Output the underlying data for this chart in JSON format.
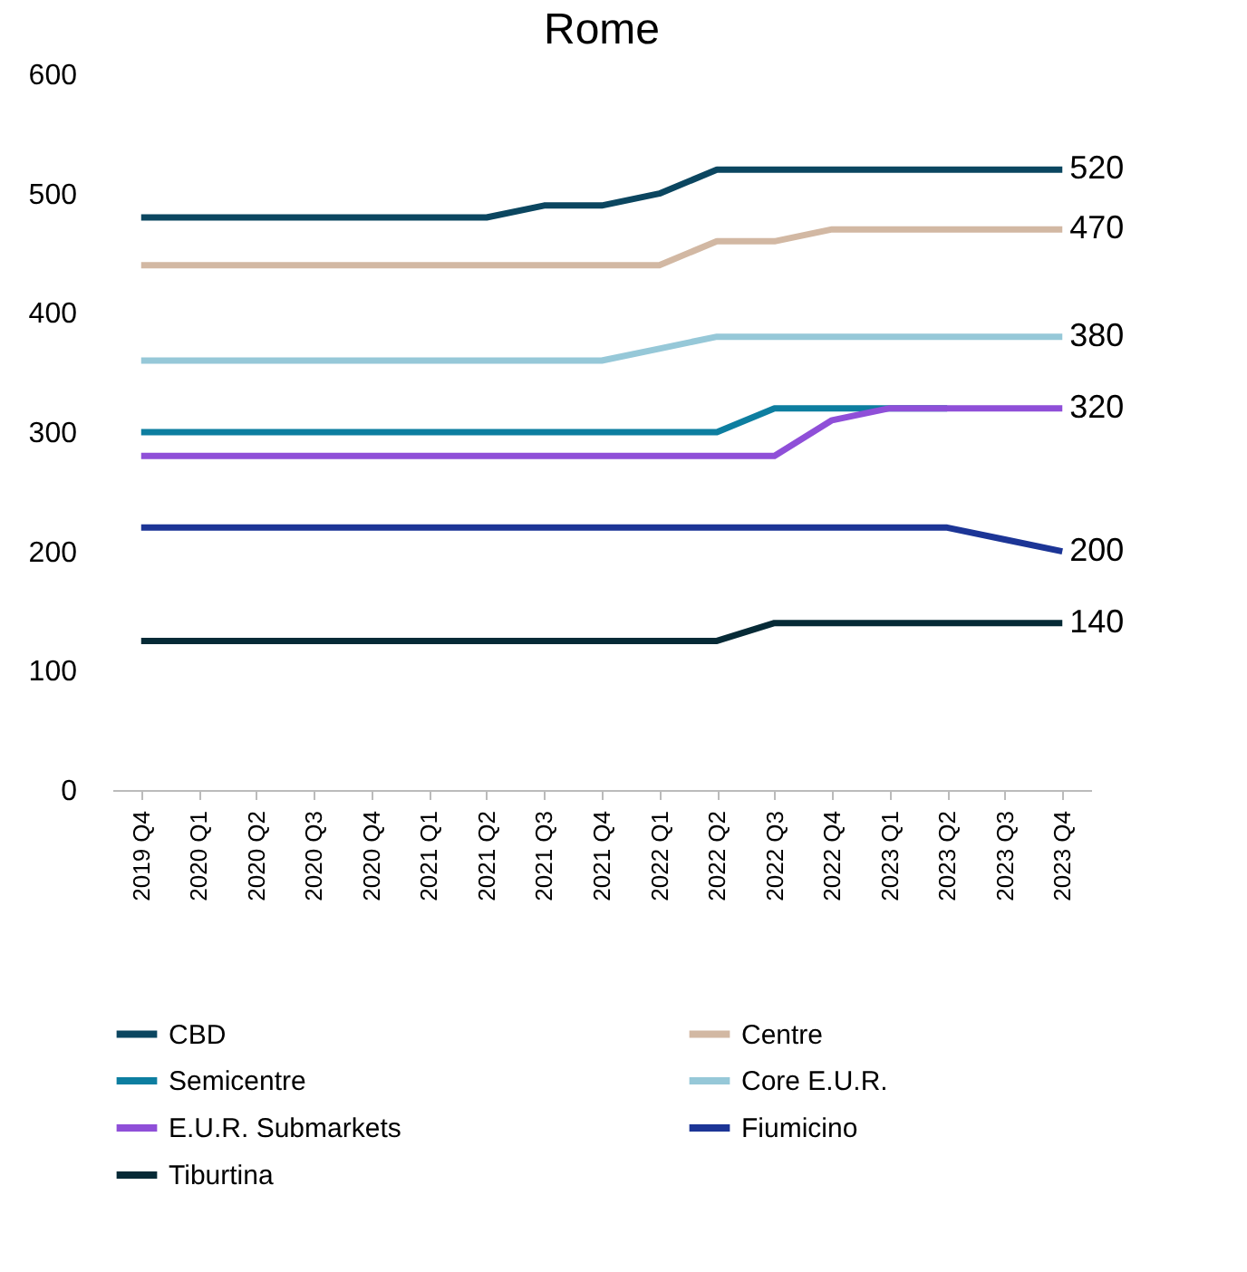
{
  "chart_data": {
    "type": "line",
    "title": "Rome",
    "categories": [
      "2019 Q4",
      "2020 Q1",
      "2020 Q2",
      "2020 Q3",
      "2020 Q4",
      "2021 Q1",
      "2021 Q2",
      "2021 Q3",
      "2021 Q4",
      "2022 Q1",
      "2022 Q2",
      "2022 Q3",
      "2022 Q4",
      "2023 Q1",
      "2023 Q2",
      "2023 Q3",
      "2023 Q4"
    ],
    "ylim": [
      0,
      600
    ],
    "yticks": [
      0,
      100,
      200,
      300,
      400,
      500,
      600
    ],
    "grid": false,
    "legend": "bottom",
    "marker": "none",
    "line_style": "solid",
    "series": [
      {
        "name": "CBD",
        "color": "#0b4660",
        "values": [
          480,
          480,
          480,
          480,
          480,
          480,
          480,
          490,
          490,
          500,
          520,
          520,
          520,
          520,
          520,
          520,
          520
        ],
        "value_labels": [
          null,
          null,
          null,
          null,
          null,
          null,
          null,
          null,
          null,
          null,
          null,
          null,
          null,
          null,
          null,
          null,
          "520"
        ]
      },
      {
        "name": "Centre",
        "color": "#d2b8a3",
        "values": [
          440,
          440,
          440,
          440,
          440,
          440,
          440,
          440,
          440,
          440,
          460,
          460,
          470,
          470,
          470,
          470,
          470
        ],
        "value_labels": [
          null,
          null,
          null,
          null,
          null,
          null,
          null,
          null,
          null,
          null,
          null,
          null,
          null,
          null,
          null,
          null,
          "470"
        ]
      },
      {
        "name": "Semicentre",
        "color": "#0d7ea0",
        "values": [
          300,
          300,
          300,
          300,
          300,
          300,
          300,
          300,
          300,
          300,
          300,
          320,
          320,
          320,
          320,
          null,
          null
        ]
      },
      {
        "name": "Core E.U.R.",
        "color": "#96c8d8",
        "values": [
          360,
          360,
          360,
          360,
          360,
          360,
          360,
          360,
          360,
          370,
          380,
          380,
          380,
          380,
          380,
          380,
          380
        ],
        "value_labels": [
          null,
          null,
          null,
          null,
          null,
          null,
          null,
          null,
          null,
          null,
          null,
          null,
          null,
          null,
          null,
          null,
          "380"
        ]
      },
      {
        "name": "E.U.R. Submarkets",
        "color": "#8f4fd8",
        "values": [
          280,
          280,
          280,
          280,
          280,
          280,
          280,
          280,
          280,
          280,
          280,
          280,
          310,
          320,
          320,
          320,
          320
        ],
        "value_labels": [
          null,
          null,
          null,
          null,
          null,
          null,
          null,
          null,
          null,
          null,
          null,
          null,
          null,
          null,
          null,
          null,
          "320"
        ]
      },
      {
        "name": "Fiumicino",
        "color": "#1c3596",
        "values": [
          220,
          220,
          220,
          220,
          220,
          220,
          220,
          220,
          220,
          220,
          220,
          220,
          220,
          220,
          220,
          210,
          200
        ],
        "value_labels": [
          null,
          null,
          null,
          null,
          null,
          null,
          null,
          null,
          null,
          null,
          null,
          null,
          null,
          null,
          null,
          null,
          "200"
        ]
      },
      {
        "name": "Tiburtina",
        "color": "#062a36",
        "values": [
          125,
          125,
          125,
          125,
          125,
          125,
          125,
          125,
          125,
          125,
          125,
          140,
          140,
          140,
          140,
          140,
          140
        ],
        "value_labels": [
          null,
          null,
          null,
          null,
          null,
          null,
          null,
          null,
          null,
          null,
          null,
          null,
          null,
          null,
          null,
          null,
          "140"
        ]
      }
    ]
  }
}
